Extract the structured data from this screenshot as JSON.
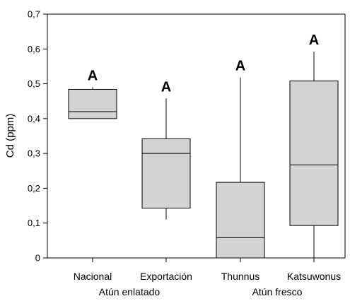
{
  "chart_data": {
    "type": "box",
    "title": "",
    "xlabel": "",
    "ylabel": "Cd (ppm)",
    "ylim": [
      0,
      0.7
    ],
    "yticks": [
      "0",
      "0,1",
      "0,2",
      "0,3",
      "0,4",
      "0,5",
      "0,6",
      "0,7"
    ],
    "categories": [
      "Nacional",
      "Exportación",
      "Thunnus",
      "Katsuwonus"
    ],
    "groups": [
      {
        "label": "Atún enlatado",
        "categories": [
          "Nacional",
          "Exportación"
        ]
      },
      {
        "label": "Atún fresco",
        "categories": [
          "Thunnus",
          "Katsuwonus"
        ]
      }
    ],
    "boxes": [
      {
        "category": "Nacional",
        "min": 0.4,
        "q1": 0.4,
        "median": 0.42,
        "q3": 0.484,
        "max": 0.49,
        "annotation": "A"
      },
      {
        "category": "Exportación",
        "min": 0.11,
        "q1": 0.143,
        "median": 0.3,
        "q3": 0.342,
        "max": 0.458,
        "annotation": "A"
      },
      {
        "category": "Thunnus",
        "min": 0.0,
        "q1": 0.0,
        "median": 0.058,
        "q3": 0.217,
        "max": 0.518,
        "annotation": "A"
      },
      {
        "category": "Katsuwonus",
        "min": 0.0,
        "q1": 0.093,
        "median": 0.267,
        "q3": 0.508,
        "max": 0.592,
        "annotation": "A"
      }
    ],
    "colors": {
      "box_fill": "#d3d3d3",
      "line": "#000000"
    },
    "grid": false,
    "legend": "none"
  }
}
